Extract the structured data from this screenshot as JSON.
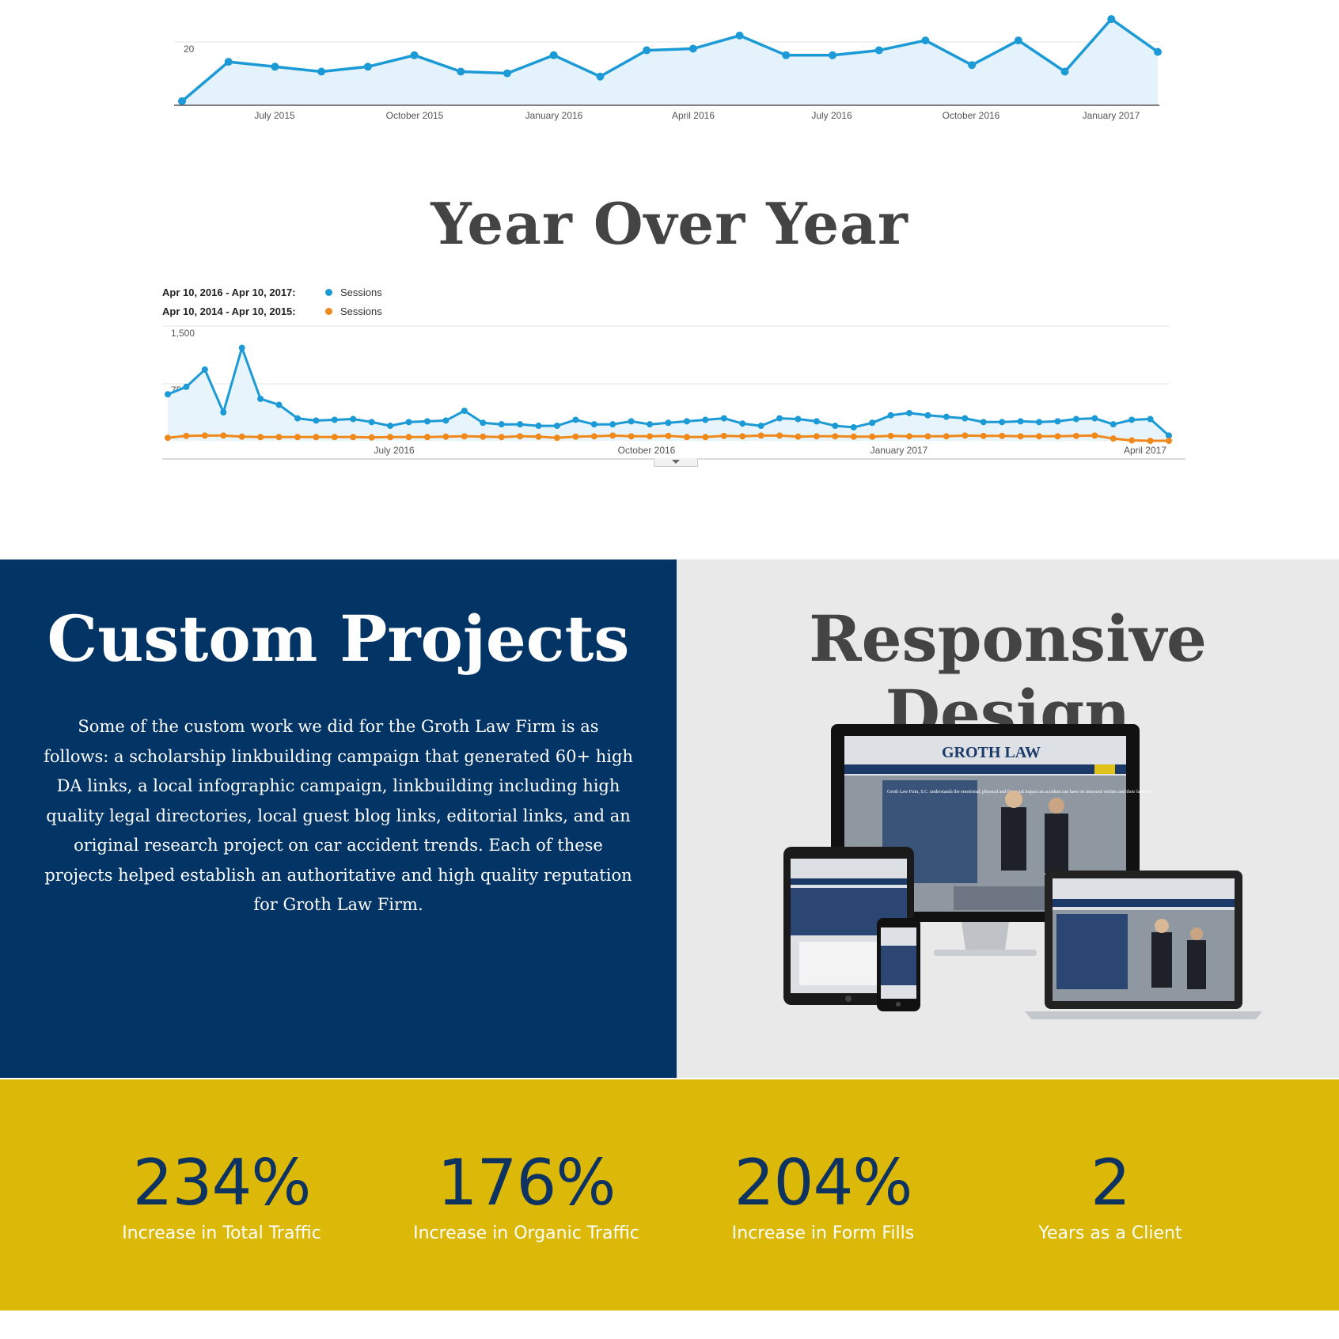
{
  "top_chart": {
    "y_tick_label": "20",
    "x_ticks": [
      "July 2015",
      "October 2015",
      "January 2016",
      "April 2016",
      "July 2016",
      "October 2016",
      "January 2017"
    ],
    "values": [
      1,
      13,
      11.5,
      10,
      11.5,
      15,
      10,
      9.5,
      15,
      8.5,
      16.5,
      17,
      21,
      15,
      15,
      16.5,
      19.5,
      12,
      19.5,
      10,
      26,
      16
    ]
  },
  "yoy": {
    "title": "Year Over Year",
    "legend": [
      {
        "range": "Apr 10, 2016 - Apr 10, 2017:",
        "label": "Sessions",
        "color": "#1b9ad6"
      },
      {
        "range": "Apr 10, 2014 - Apr 10, 2015:",
        "label": "Sessions",
        "color": "#f0891c"
      }
    ],
    "y_ticks": [
      "1,500",
      "750"
    ],
    "x_ticks": [
      "July 2016",
      "October 2016",
      "January 2017",
      "April 2017"
    ]
  },
  "chart_data": [
    {
      "type": "area",
      "title": "",
      "x_tick_labels": [
        "July 2015",
        "October 2015",
        "January 2016",
        "April 2016",
        "July 2016",
        "October 2016",
        "January 2017"
      ],
      "series": [
        {
          "values": [
            1,
            13,
            11.5,
            10,
            11.5,
            15,
            10,
            9.5,
            15,
            8.5,
            16.5,
            17,
            21,
            15,
            15,
            16.5,
            19.5,
            12,
            19.5,
            10,
            26,
            16
          ]
        }
      ],
      "y_tick_labels": [
        "20"
      ],
      "grid": true
    },
    {
      "type": "line",
      "title": "Year Over Year",
      "x_tick_labels": [
        "July 2016",
        "October 2016",
        "January 2017",
        "April 2017"
      ],
      "y_tick_labels": [
        "1,500",
        "750"
      ],
      "ylim": [
        0,
        1500
      ],
      "series": [
        {
          "name": "Apr 10, 2016 - Apr 10, 2017: Sessions",
          "color": "#1b9ad6",
          "values": [
            620,
            720,
            950,
            380,
            1240,
            560,
            480,
            300,
            270,
            280,
            290,
            250,
            200,
            250,
            260,
            270,
            400,
            240,
            220,
            220,
            200,
            200,
            280,
            220,
            220,
            260,
            220,
            240,
            260,
            280,
            300,
            230,
            200,
            300,
            290,
            260,
            200,
            180,
            240,
            340,
            370,
            340,
            320,
            300,
            250,
            250,
            260,
            250,
            260,
            290,
            300,
            220,
            280,
            290,
            70
          ]
        },
        {
          "name": "Apr 10, 2014 - Apr 10, 2015: Sessions",
          "color": "#f0891c",
          "values": [
            40,
            65,
            70,
            70,
            55,
            50,
            50,
            50,
            50,
            50,
            50,
            45,
            50,
            50,
            50,
            55,
            60,
            55,
            50,
            60,
            55,
            40,
            55,
            60,
            70,
            60,
            60,
            65,
            50,
            50,
            65,
            60,
            70,
            70,
            55,
            60,
            60,
            55,
            55,
            65,
            60,
            60,
            60,
            70,
            65,
            65,
            60,
            60,
            60,
            65,
            70,
            30,
            5,
            0,
            0
          ]
        }
      ]
    }
  ],
  "custom": {
    "title": "Custom Projects",
    "body": "Some of the custom work we did for the Groth Law Firm is as follows: a scholarship linkbuilding campaign that generated 60+ high DA links, a local infographic campaign, linkbuilding including high quality legal directories, local guest blog links, editorial links, and an original research project on car accident trends. Each of these projects helped establish an authoritative and high quality reputation for Groth Law Firm."
  },
  "responsive": {
    "title": "Responsive Design",
    "logo_text": "GROTH LAW",
    "screen_text": "Groth Law Firm, S.C. understands the emotional, physical and financial impact an accident can have on innocent victims and their families"
  },
  "stats": [
    {
      "number": "234%",
      "label": "Increase in Total Traffic"
    },
    {
      "number": "176%",
      "label": "Increase in Organic Traffic"
    },
    {
      "number": "204%",
      "label": "Increase in Form Fills"
    },
    {
      "number": "2",
      "label": "Years as a Client"
    }
  ],
  "colors": {
    "navy": "#033466",
    "gold": "#dcb908",
    "light_gray": "#e9e9e9",
    "series_blue": "#1b9ad6",
    "series_orange": "#f0891c"
  }
}
